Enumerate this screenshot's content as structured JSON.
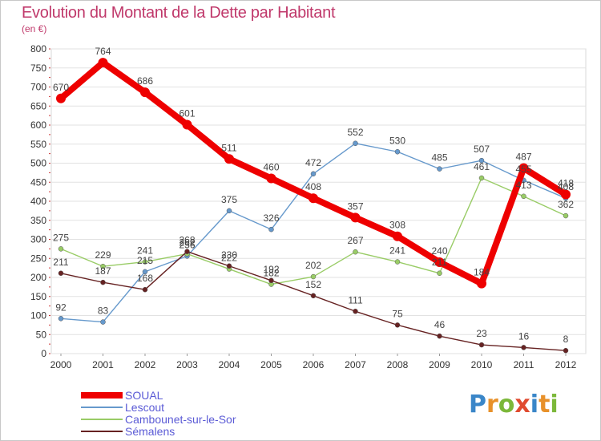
{
  "title": "Evolution du Montant de la Dette par Habitant",
  "unit": "(en €)",
  "logo": {
    "text": "Proxiti",
    "colors": [
      "#3a86c8",
      "#e8912a",
      "#7cb83a",
      "#e04a2f",
      "#3a86c8",
      "#e8912a",
      "#7cb83a"
    ]
  },
  "chart_data": {
    "type": "line",
    "x": [
      "2000",
      "2001",
      "2002",
      "2003",
      "2004",
      "2005",
      "2006",
      "2007",
      "2008",
      "2009",
      "2010",
      "2011",
      "2012"
    ],
    "ylim": [
      0,
      800
    ],
    "yticks": [
      "0",
      "50",
      "100",
      "150",
      "200",
      "250",
      "300",
      "350",
      "400",
      "450",
      "500",
      "550",
      "600",
      "650",
      "700",
      "750",
      "800"
    ],
    "grid": "horizontal",
    "legend_position": "bottom-left",
    "series": [
      {
        "name": "SOUAL",
        "color": "#ee0000",
        "bold": true,
        "values": [
          670,
          764,
          686,
          601,
          511,
          460,
          408,
          357,
          308,
          240,
          184,
          487,
          418
        ],
        "labels": [
          "670",
          "764",
          "686",
          "601",
          "511",
          "460",
          "408",
          "357",
          "308",
          "240",
          "184",
          "487",
          "418"
        ]
      },
      {
        "name": "Lescout",
        "color": "#6699cc",
        "values": [
          92,
          83,
          215,
          256,
          375,
          326,
          472,
          552,
          530,
          485,
          507,
          455,
          408
        ],
        "labels": [
          "92",
          "83",
          "215",
          "256",
          "375",
          "326",
          "472",
          "552",
          "530",
          "485",
          "507",
          "455",
          "408"
        ]
      },
      {
        "name": "Cambounet-sur-le-Sor",
        "color": "#99cc66",
        "values": [
          275,
          229,
          241,
          262,
          222,
          182,
          202,
          267,
          241,
          211,
          461,
          413,
          362
        ],
        "labels": [
          "275",
          "229",
          "241",
          "262",
          "222",
          "182",
          "202",
          "267",
          "241",
          "211",
          "461",
          "413",
          "362"
        ]
      },
      {
        "name": "Sémalens",
        "color": "#662222",
        "values": [
          211,
          187,
          168,
          268,
          230,
          192,
          152,
          111,
          75,
          46,
          23,
          16,
          8
        ],
        "labels": [
          "211",
          "187",
          "168",
          "268",
          "230",
          "192",
          "152",
          "111",
          "75",
          "46",
          "23",
          "16",
          "8"
        ]
      }
    ]
  }
}
